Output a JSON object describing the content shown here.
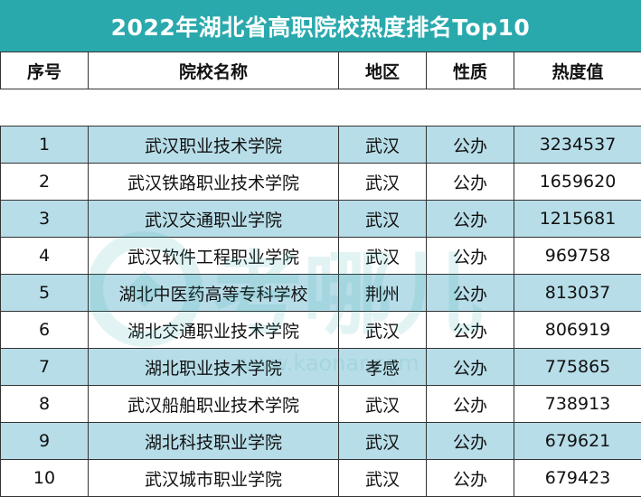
{
  "title": "2022年湖北省高职院校热度排名Top10",
  "headers": [
    "序号",
    "院校名称",
    "地区",
    "性质",
    "热度值"
  ],
  "rows": [
    [
      "1",
      "武汉职业技术学院",
      "武汉",
      "公办",
      "3234537"
    ],
    [
      "2",
      "武汉铁路职业技术学院",
      "武汉",
      "公办",
      "1659620"
    ],
    [
      "3",
      "武汉交通职业学院",
      "武汉",
      "公办",
      "1215681"
    ],
    [
      "4",
      "武汉软件工程职业学院",
      "武汉",
      "公办",
      "969758"
    ],
    [
      "5",
      "湖北中医药高等专科学校",
      "荆州",
      "公办",
      "813037"
    ],
    [
      "6",
      "湖北交通职业技术学院",
      "武汉",
      "公办",
      "806919"
    ],
    [
      "7",
      "湖北职业技术学院",
      "孝感",
      "公办",
      "775865"
    ],
    [
      "8",
      "武汉船舶职业技术学院",
      "武汉",
      "公办",
      "738913"
    ],
    [
      "9",
      "湖北科技职业学院",
      "武汉",
      "公办",
      "679621"
    ],
    [
      "10",
      "武汉城市职业学院",
      "武汉",
      "公办",
      "679423"
    ]
  ],
  "watermark": {
    "text": "考哪儿",
    "url_text": "www.kaonar.com"
  },
  "colors": {
    "title_bg": "#2aa9ad",
    "stripe": "#b7dde8"
  }
}
